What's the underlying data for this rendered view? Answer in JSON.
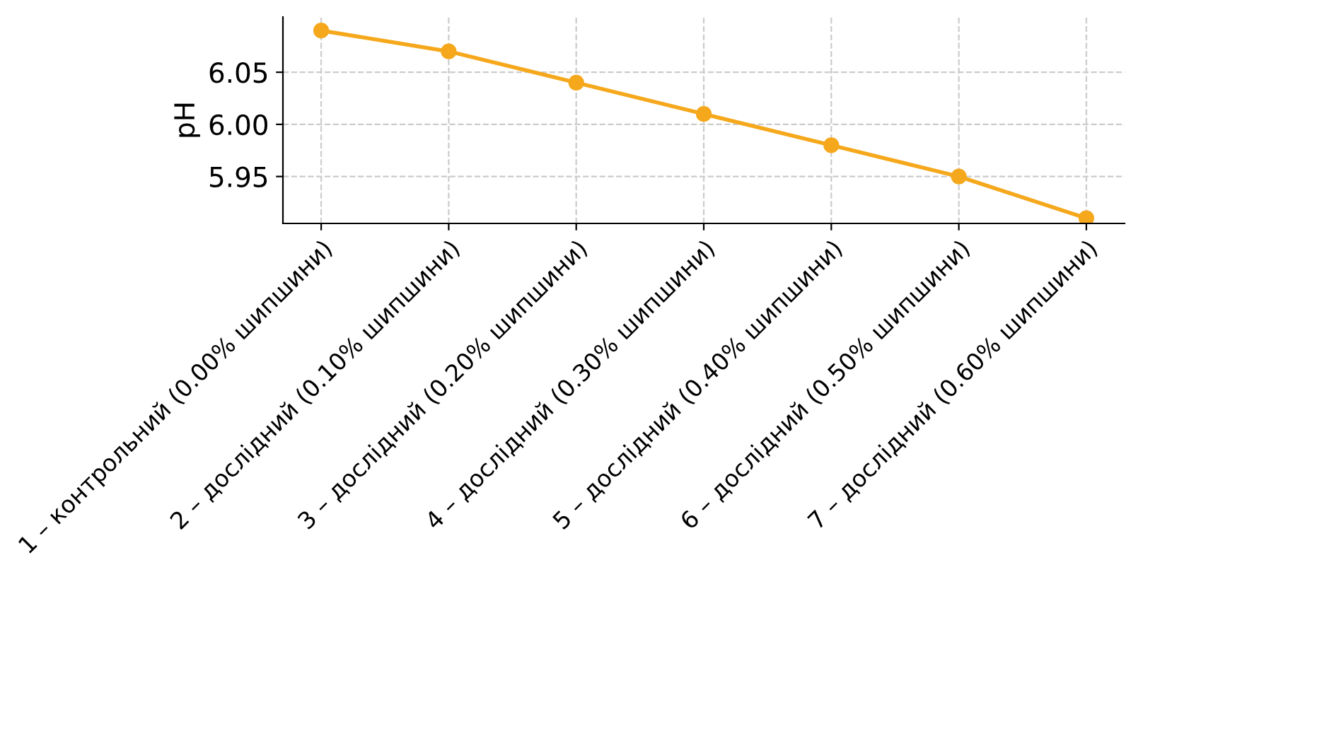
{
  "chart_data": {
    "type": "line",
    "ylabel": "pH",
    "categories": [
      "1 – контрольний (0.00% шипшини)",
      "2 – дослідний (0.10% шипшини)",
      "3 – дослідний (0.20% шипшини)",
      "4 – дослідний (0.30% шипшини)",
      "5 – дослідний (0.40% шипшини)",
      "6 – дослідний (0.50% шипшини)",
      "7 – дослідний (0.60% шипшини)"
    ],
    "series": [
      {
        "color": "#f5a81c",
        "values": [
          6.09,
          6.07,
          6.04,
          6.01,
          5.98,
          5.95,
          5.91
        ]
      }
    ],
    "ylim": [
      5.905,
      6.103
    ],
    "yticks": [
      5.95,
      {
        "value": 6.0,
        "label": "6.00"
      },
      6.05
    ],
    "grid": true,
    "marker": "circle",
    "line_style": "solid"
  }
}
